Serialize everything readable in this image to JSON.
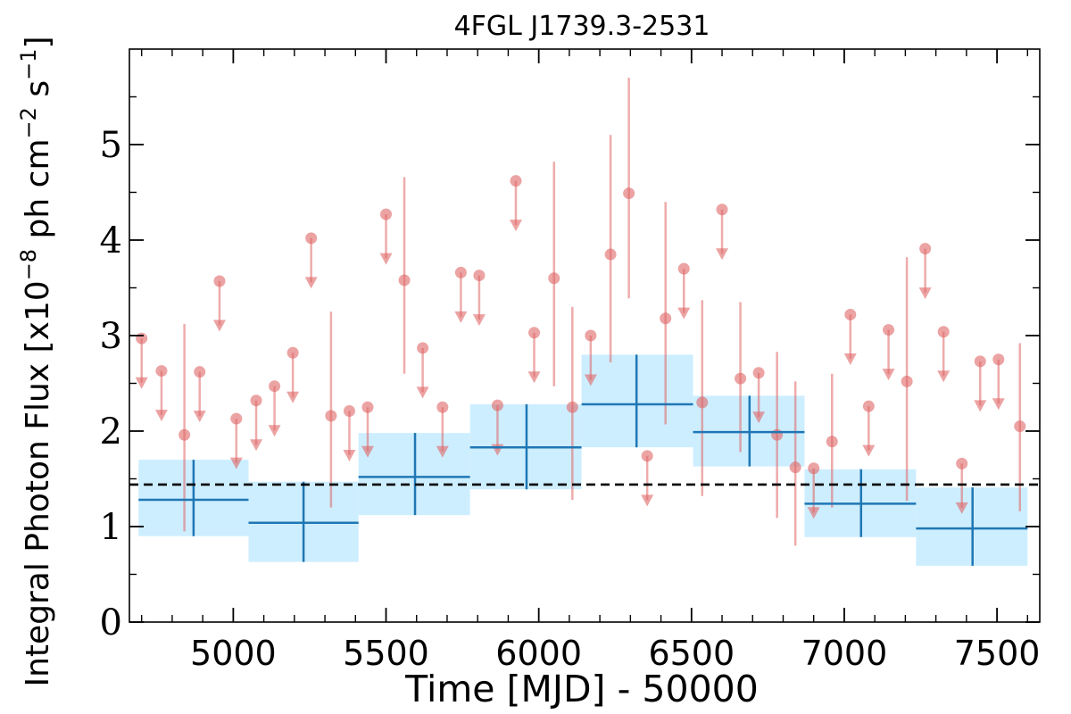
{
  "chart_data": {
    "type": "scatter",
    "title": "4FGL J1739.3-2531",
    "xlabel": "Time [MJD] - 50000",
    "ylabel": "Integral Photon Flux [x10^-8 ph cm^-2 s^-1]",
    "ylabel_parts": {
      "pre": "Integral Photon Flux [x10",
      "exp1": "−8",
      "mid": " ph cm",
      "exp2": "−2",
      "mid2": " s",
      "exp3": "−1",
      "post": "]"
    },
    "xlim": [
      4660,
      7640
    ],
    "ylim": [
      0,
      6
    ],
    "x_ticks": [
      5000,
      5500,
      6000,
      6500,
      7000,
      7500
    ],
    "y_ticks": [
      0,
      1,
      2,
      3,
      4,
      5
    ],
    "mean_flux": 1.44,
    "binned": [
      {
        "x": 4870,
        "x_lo": 4690,
        "x_hi": 5050,
        "y": 1.28,
        "y_lo": 0.9,
        "y_hi": 1.7
      },
      {
        "x": 5230,
        "x_lo": 5050,
        "x_hi": 5410,
        "y": 1.04,
        "y_lo": 0.63,
        "y_hi": 1.47
      },
      {
        "x": 5595,
        "x_lo": 5410,
        "x_hi": 5775,
        "y": 1.52,
        "y_lo": 1.12,
        "y_hi": 1.98
      },
      {
        "x": 5960,
        "x_lo": 5775,
        "x_hi": 6140,
        "y": 1.83,
        "y_lo": 1.39,
        "y_hi": 2.28
      },
      {
        "x": 6320,
        "x_lo": 6140,
        "x_hi": 6505,
        "y": 2.28,
        "y_lo": 1.83,
        "y_hi": 2.8
      },
      {
        "x": 6690,
        "x_lo": 6505,
        "x_hi": 6870,
        "y": 1.99,
        "y_lo": 1.63,
        "y_hi": 2.37
      },
      {
        "x": 7055,
        "x_lo": 6870,
        "x_hi": 7235,
        "y": 1.24,
        "y_lo": 0.89,
        "y_hi": 1.6
      },
      {
        "x": 7420,
        "x_lo": 7235,
        "x_hi": 7600,
        "y": 0.98,
        "y_lo": 0.59,
        "y_hi": 1.41
      }
    ],
    "detections": [
      {
        "x": 4840,
        "y": 1.96,
        "y_lo": 0.95,
        "y_hi": 3.12
      },
      {
        "x": 5320,
        "y": 2.16,
        "y_lo": 1.2,
        "y_hi": 3.25
      },
      {
        "x": 5560,
        "y": 3.58,
        "y_lo": 2.6,
        "y_hi": 4.66
      },
      {
        "x": 6050,
        "y": 3.6,
        "y_lo": 2.47,
        "y_hi": 4.82
      },
      {
        "x": 6110,
        "y": 2.25,
        "y_lo": 1.28,
        "y_hi": 3.3
      },
      {
        "x": 6235,
        "y": 3.85,
        "y_lo": 2.72,
        "y_hi": 5.1
      },
      {
        "x": 6295,
        "y": 4.49,
        "y_lo": 3.39,
        "y_hi": 5.7
      },
      {
        "x": 6415,
        "y": 3.18,
        "y_lo": 2.07,
        "y_hi": 4.4
      },
      {
        "x": 6535,
        "y": 2.3,
        "y_lo": 1.32,
        "y_hi": 3.37
      },
      {
        "x": 6660,
        "y": 2.55,
        "y_lo": 1.78,
        "y_hi": 3.35
      },
      {
        "x": 6780,
        "y": 1.96,
        "y_lo": 1.09,
        "y_hi": 2.83
      },
      {
        "x": 6840,
        "y": 1.62,
        "y_lo": 0.8,
        "y_hi": 2.52
      },
      {
        "x": 6960,
        "y": 1.89,
        "y_lo": 1.2,
        "y_hi": 2.6
      },
      {
        "x": 7205,
        "y": 2.52,
        "y_lo": 1.27,
        "y_hi": 3.82
      },
      {
        "x": 7575,
        "y": 2.05,
        "y_lo": 1.16,
        "y_hi": 2.92
      }
    ],
    "upper_limits": [
      {
        "x": 4700,
        "y": 2.97
      },
      {
        "x": 4765,
        "y": 2.63
      },
      {
        "x": 4890,
        "y": 2.62
      },
      {
        "x": 4955,
        "y": 3.57
      },
      {
        "x": 5010,
        "y": 2.13
      },
      {
        "x": 5075,
        "y": 2.32
      },
      {
        "x": 5135,
        "y": 2.47
      },
      {
        "x": 5195,
        "y": 2.82
      },
      {
        "x": 5255,
        "y": 4.02
      },
      {
        "x": 5380,
        "y": 2.21
      },
      {
        "x": 5440,
        "y": 2.25
      },
      {
        "x": 5500,
        "y": 4.27
      },
      {
        "x": 5620,
        "y": 2.87
      },
      {
        "x": 5685,
        "y": 2.25
      },
      {
        "x": 5745,
        "y": 3.66
      },
      {
        "x": 5805,
        "y": 3.63
      },
      {
        "x": 5865,
        "y": 2.27
      },
      {
        "x": 5925,
        "y": 4.62
      },
      {
        "x": 5985,
        "y": 3.03
      },
      {
        "x": 6170,
        "y": 3.0
      },
      {
        "x": 6355,
        "y": 1.74
      },
      {
        "x": 6475,
        "y": 3.7
      },
      {
        "x": 6600,
        "y": 4.32
      },
      {
        "x": 6720,
        "y": 2.61
      },
      {
        "x": 6900,
        "y": 1.61
      },
      {
        "x": 7020,
        "y": 3.22
      },
      {
        "x": 7080,
        "y": 2.26
      },
      {
        "x": 7145,
        "y": 3.06
      },
      {
        "x": 7265,
        "y": 3.91
      },
      {
        "x": 7325,
        "y": 3.04
      },
      {
        "x": 7385,
        "y": 1.66
      },
      {
        "x": 7445,
        "y": 2.73
      },
      {
        "x": 7505,
        "y": 2.75
      }
    ],
    "colors": {
      "binned_line": "#1f77b4",
      "binned_fill": "#cdeeff",
      "points": "#e06666",
      "mean_line": "#000000"
    },
    "grid": false,
    "legend": "none"
  }
}
